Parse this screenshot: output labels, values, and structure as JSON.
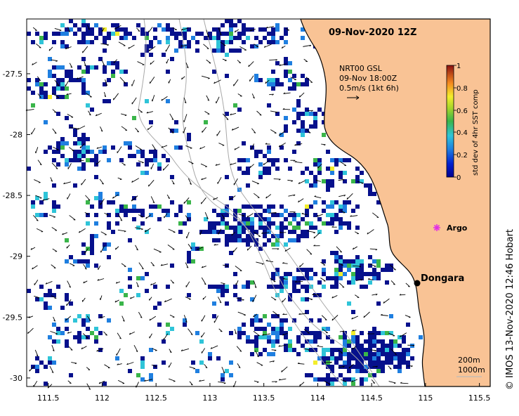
{
  "title": "09-Nov-2020 12Z",
  "current_legend": {
    "line1": "NRT00 GSL",
    "line2": "09-Nov 18:00Z",
    "line3": "0.5m/s (1kt 6h)"
  },
  "colorbar": {
    "label": "std dev of 4hr SST comp",
    "ticks": [
      "0",
      "0.2",
      "0.4",
      "0.6",
      "0.8",
      "1"
    ]
  },
  "places": {
    "dongara": "Dongara",
    "argo": "Argo"
  },
  "depth_legend": {
    "line1": "200m",
    "line2": "1000m"
  },
  "credit": "© IMOS 13-Nov-2020 12:46 Hobart",
  "axes": {
    "x_ticks": [
      "111.5",
      "112",
      "112.5",
      "113",
      "113.5",
      "114",
      "114.5",
      "115",
      "115.5"
    ],
    "y_ticks": [
      "-27.5",
      "-28",
      "-28.5",
      "-29",
      "-29.5",
      "-30"
    ],
    "x_range": [
      111.3,
      115.6
    ],
    "y_range": [
      -30.07,
      -27.05
    ]
  },
  "colors": {
    "land": "#f9c395",
    "coast": "#000000",
    "pixel_main": "#06108c",
    "pixel_mid": "#1f7fe0",
    "pixel_cyan": "#2fc4d8",
    "pixel_green": "#3ab54a",
    "pixel_yellow": "#f3ee2c",
    "argo": "#e22ee6"
  }
}
